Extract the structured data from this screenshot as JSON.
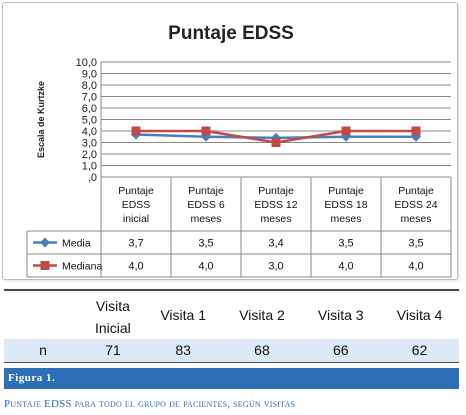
{
  "chart_data": {
    "type": "line",
    "title": "Puntaje EDSS",
    "ylabel": "Escala de Kurtzke",
    "xlabel": "",
    "ylim": [
      0,
      10
    ],
    "y_ticks": [
      "10,0",
      "9,0",
      "8,0",
      "7,0",
      "6,0",
      "5,0",
      "4,0",
      "3,0",
      "2,0",
      "1,0",
      ",0"
    ],
    "categories": [
      [
        "Puntaje",
        "EDSS",
        "inicial"
      ],
      [
        "Puntaje",
        "EDSS 6",
        "meses"
      ],
      [
        "Puntaje",
        "EDSS 12",
        "meses"
      ],
      [
        "Puntaje",
        "EDSS 18",
        "meses"
      ],
      [
        "Puntaje",
        "EDSS 24",
        "meses"
      ]
    ],
    "grid": true,
    "legend": "data-table",
    "series": [
      {
        "name": "Media",
        "values": [
          3.7,
          3.5,
          3.4,
          3.5,
          3.5
        ],
        "labels": [
          "3,7",
          "3,5",
          "3,4",
          "3,5",
          "3,5"
        ],
        "color": "#4a7ebb",
        "marker": "diamond"
      },
      {
        "name": "Mediana",
        "values": [
          4.0,
          4.0,
          3.0,
          4.0,
          4.0
        ],
        "labels": [
          "4,0",
          "4,0",
          "3,0",
          "4,0",
          "4,0"
        ],
        "color": "#be4b48",
        "marker": "square"
      }
    ]
  },
  "visits_table": {
    "headers": [
      [
        "Visita",
        "Inicial"
      ],
      [
        "Visita 1"
      ],
      [
        "Visita 2"
      ],
      [
        "Visita 3"
      ],
      [
        "Visita 4"
      ]
    ],
    "row_label": "n",
    "values": [
      "71",
      "83",
      "68",
      "66",
      "62"
    ],
    "row_color": "#dce9f7"
  },
  "figure": {
    "label": "Figura 1.",
    "caption": "Puntaje EDSS para todo el grupo de pacientes, según visitas",
    "accent": "#2c6fb5"
  }
}
